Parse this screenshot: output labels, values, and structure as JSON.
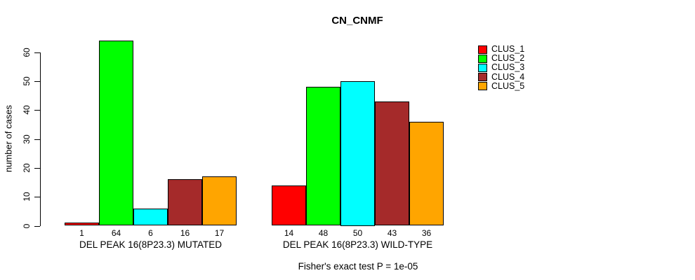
{
  "chart_data": {
    "type": "bar",
    "title": "CN_CNMF",
    "ylabel": "number of cases",
    "xlabel": "",
    "yticks": [
      0,
      10,
      20,
      30,
      40,
      50,
      60
    ],
    "ylim": [
      0,
      65
    ],
    "grid": false,
    "legend_position": "right",
    "categories": [
      "DEL PEAK 16(8P23.3) MUTATED",
      "DEL PEAK 16(8P23.3) WILD-TYPE"
    ],
    "series": [
      {
        "name": "CLUS_1",
        "color": "#FF0000",
        "values": [
          1,
          14
        ]
      },
      {
        "name": "CLUS_2",
        "color": "#00FF00",
        "values": [
          64,
          48
        ]
      },
      {
        "name": "CLUS_3",
        "color": "#00FFFF",
        "values": [
          6,
          50
        ]
      },
      {
        "name": "CLUS_4",
        "color": "#A52A2A",
        "values": [
          16,
          43
        ]
      },
      {
        "name": "CLUS_5",
        "color": "#FFA500",
        "values": [
          17,
          36
        ]
      }
    ],
    "bar_value_labels": [
      [
        1,
        64,
        6,
        16,
        17
      ],
      [
        14,
        48,
        50,
        43,
        36
      ]
    ],
    "annotation": "Fisher's exact test P = 1e-05"
  },
  "legend": {
    "items": [
      {
        "label": "CLUS_1",
        "color": "#FF0000"
      },
      {
        "label": "CLUS_2",
        "color": "#00FF00"
      },
      {
        "label": "CLUS_3",
        "color": "#00FFFF"
      },
      {
        "label": "CLUS_4",
        "color": "#A52A2A"
      },
      {
        "label": "CLUS_5",
        "color": "#FFA500"
      }
    ]
  }
}
